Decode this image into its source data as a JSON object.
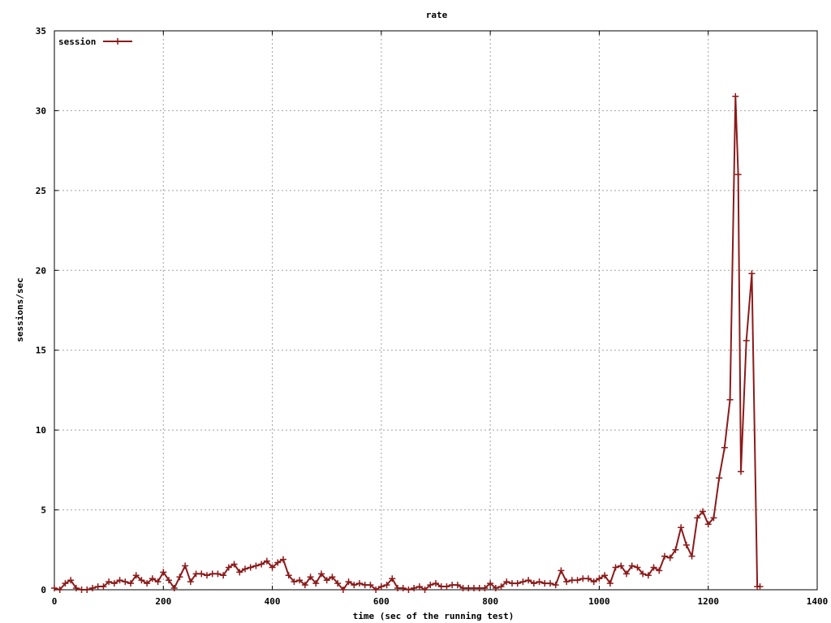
{
  "chart_data": {
    "type": "line",
    "title": "rate",
    "xlabel": "time (sec of the running test)",
    "ylabel": "sessions/sec",
    "xlim": [
      0,
      1400
    ],
    "ylim": [
      0,
      35
    ],
    "xticks": [
      0,
      200,
      400,
      600,
      800,
      1000,
      1200,
      1400
    ],
    "yticks": [
      0,
      5,
      10,
      15,
      20,
      25,
      30,
      35
    ],
    "grid": true,
    "legend_position": "top-left",
    "series": [
      {
        "name": "session",
        "color": "#8b1a1a",
        "marker": "plus",
        "x": [
          0,
          10,
          20,
          30,
          40,
          50,
          60,
          70,
          80,
          90,
          100,
          110,
          120,
          130,
          140,
          150,
          160,
          170,
          180,
          190,
          200,
          210,
          220,
          230,
          240,
          250,
          260,
          270,
          280,
          290,
          300,
          310,
          320,
          330,
          340,
          350,
          360,
          370,
          380,
          390,
          400,
          410,
          420,
          430,
          440,
          450,
          460,
          470,
          480,
          490,
          500,
          510,
          520,
          530,
          540,
          550,
          560,
          570,
          580,
          590,
          600,
          610,
          620,
          630,
          640,
          650,
          660,
          670,
          680,
          690,
          700,
          710,
          720,
          730,
          740,
          750,
          760,
          770,
          780,
          790,
          800,
          810,
          820,
          830,
          840,
          850,
          860,
          870,
          880,
          890,
          900,
          910,
          920,
          930,
          940,
          950,
          960,
          970,
          980,
          990,
          1000,
          1010,
          1020,
          1030,
          1040,
          1050,
          1060,
          1070,
          1080,
          1090,
          1100,
          1110,
          1120,
          1130,
          1140,
          1150,
          1160,
          1170,
          1180,
          1190,
          1200,
          1210,
          1220,
          1230,
          1240,
          1250,
          1255,
          1260,
          1270,
          1280,
          1290,
          1295
        ],
        "y": [
          0.1,
          0.0,
          0.4,
          0.6,
          0.1,
          0.0,
          0.0,
          0.1,
          0.2,
          0.2,
          0.5,
          0.4,
          0.6,
          0.5,
          0.4,
          0.9,
          0.6,
          0.4,
          0.7,
          0.5,
          1.1,
          0.6,
          0.1,
          0.8,
          1.5,
          0.5,
          1.0,
          1.0,
          0.9,
          1.0,
          1.0,
          0.9,
          1.4,
          1.6,
          1.1,
          1.3,
          1.4,
          1.5,
          1.6,
          1.8,
          1.4,
          1.7,
          1.9,
          0.9,
          0.5,
          0.6,
          0.3,
          0.8,
          0.4,
          1.0,
          0.6,
          0.8,
          0.4,
          0.0,
          0.5,
          0.3,
          0.4,
          0.3,
          0.3,
          0.0,
          0.2,
          0.3,
          0.7,
          0.1,
          0.1,
          0.0,
          0.1,
          0.2,
          0.0,
          0.3,
          0.4,
          0.2,
          0.2,
          0.3,
          0.3,
          0.1,
          0.1,
          0.1,
          0.1,
          0.1,
          0.4,
          0.1,
          0.2,
          0.5,
          0.4,
          0.4,
          0.5,
          0.6,
          0.4,
          0.5,
          0.4,
          0.4,
          0.3,
          1.2,
          0.5,
          0.6,
          0.6,
          0.7,
          0.7,
          0.5,
          0.7,
          0.9,
          0.4,
          1.4,
          1.5,
          1.0,
          1.5,
          1.4,
          1.0,
          0.9,
          1.4,
          1.2,
          2.1,
          2.0,
          2.5,
          3.9,
          2.8,
          2.1,
          4.5,
          4.9,
          4.1,
          4.5,
          7.0,
          8.9,
          11.9,
          30.9,
          26.0,
          7.4,
          15.6,
          19.8,
          0.2,
          0.2
        ]
      }
    ]
  }
}
